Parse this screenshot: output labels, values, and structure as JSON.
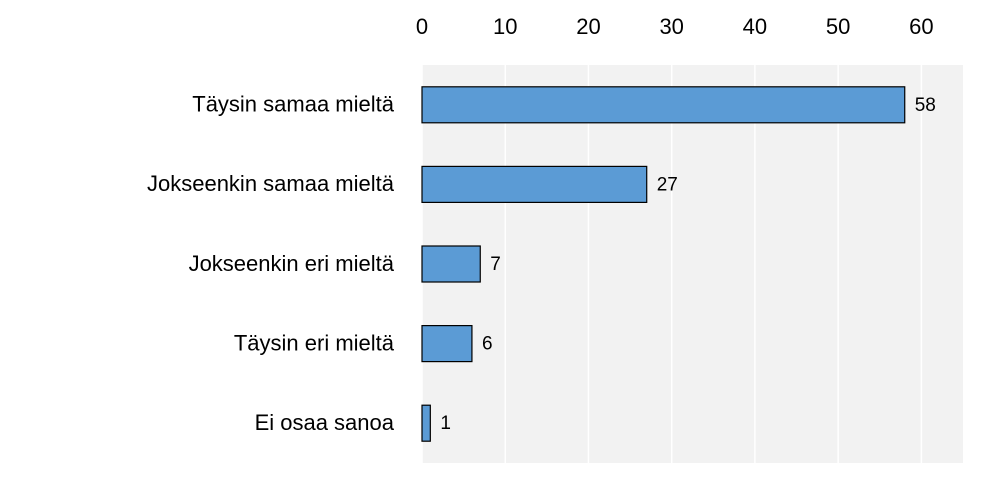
{
  "chart_data": {
    "type": "bar",
    "orientation": "horizontal",
    "categories": [
      "Täysin samaa mieltä",
      "Jokseenkin samaa mieltä",
      "Jokseenkin eri mieltä",
      "Täysin eri mieltä",
      "Ei osaa sanoa"
    ],
    "values": [
      58,
      27,
      7,
      6,
      1
    ],
    "color": "#5b9bd5",
    "xlim": [
      0,
      65
    ],
    "xticks": [
      0,
      10,
      20,
      30,
      40,
      50,
      60
    ],
    "grid": true
  }
}
